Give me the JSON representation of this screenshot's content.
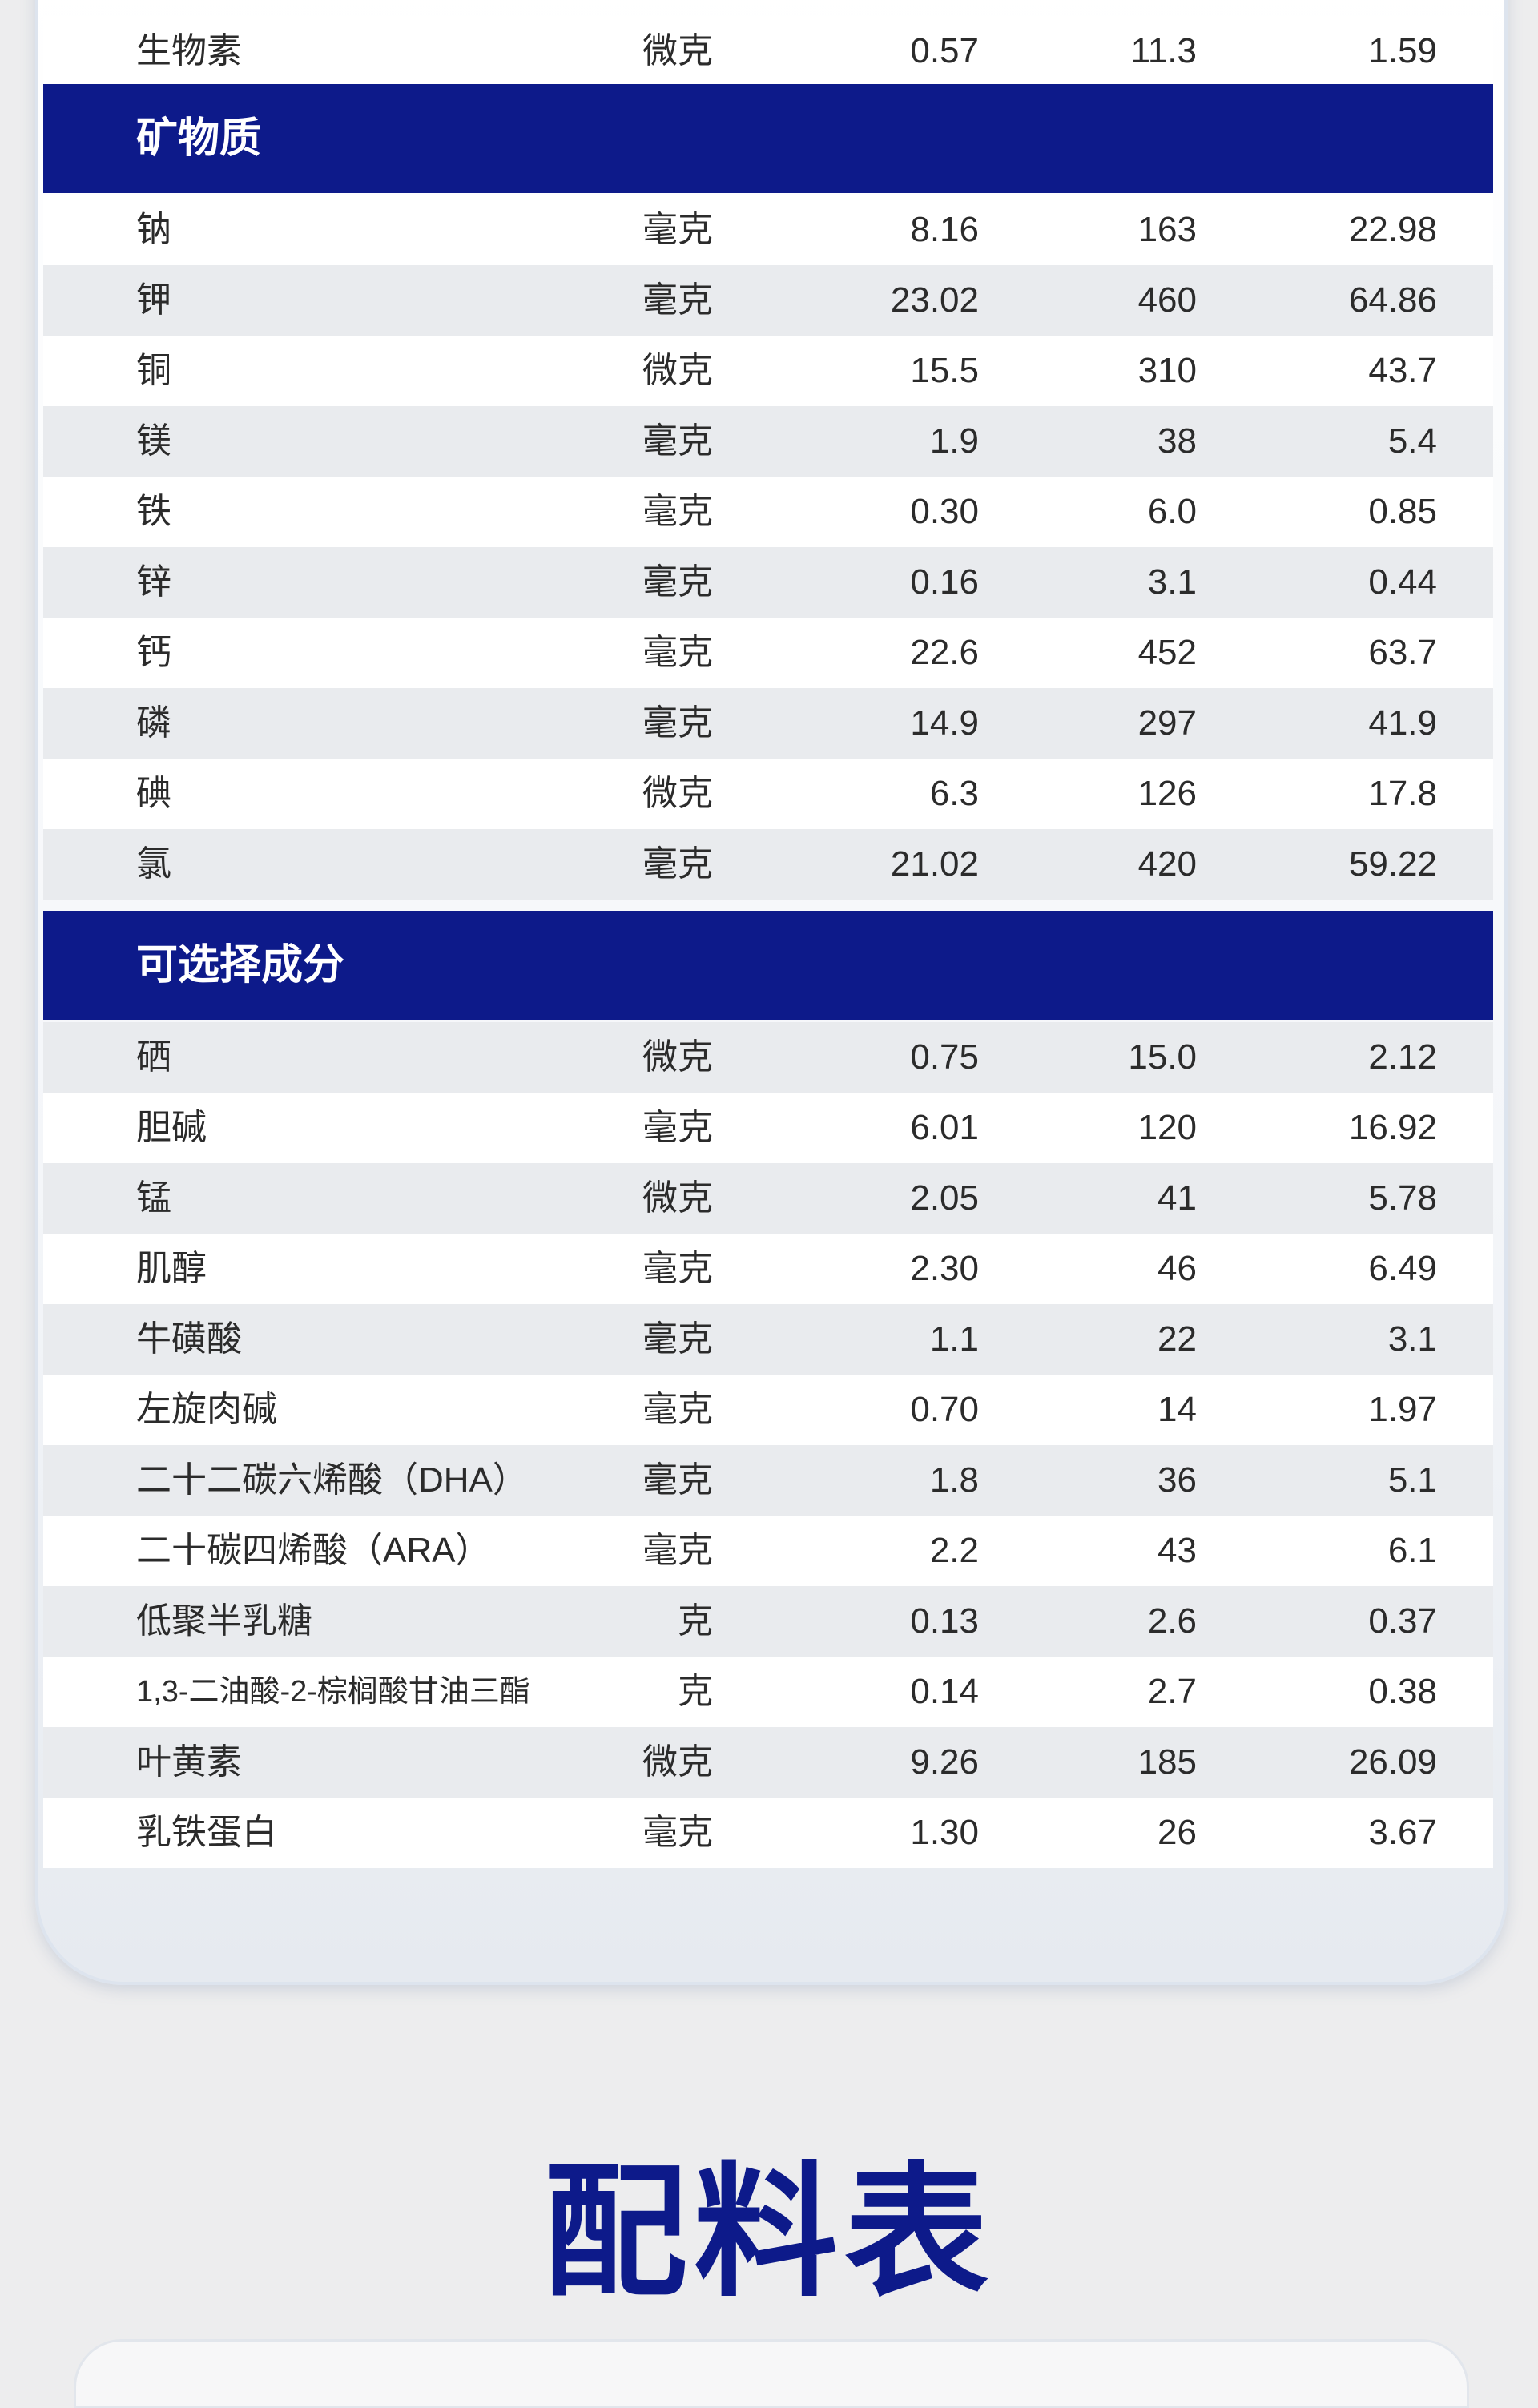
{
  "top_row": {
    "name": "生物素",
    "unit": "微克",
    "v1": "0.57",
    "v2": "11.3",
    "v3": "1.59"
  },
  "sections": {
    "minerals": {
      "title": "矿物质",
      "rows": [
        {
          "name": "钠",
          "unit": "毫克",
          "v1": "8.16",
          "v2": "163",
          "v3": "22.98"
        },
        {
          "name": "钾",
          "unit": "毫克",
          "v1": "23.02",
          "v2": "460",
          "v3": "64.86"
        },
        {
          "name": "铜",
          "unit": "微克",
          "v1": "15.5",
          "v2": "310",
          "v3": "43.7"
        },
        {
          "name": "镁",
          "unit": "毫克",
          "v1": "1.9",
          "v2": "38",
          "v3": "5.4"
        },
        {
          "name": "铁",
          "unit": "毫克",
          "v1": "0.30",
          "v2": "6.0",
          "v3": "0.85"
        },
        {
          "name": "锌",
          "unit": "毫克",
          "v1": "0.16",
          "v2": "3.1",
          "v3": "0.44"
        },
        {
          "name": "钙",
          "unit": "毫克",
          "v1": "22.6",
          "v2": "452",
          "v3": "63.7"
        },
        {
          "name": "磷",
          "unit": "毫克",
          "v1": "14.9",
          "v2": "297",
          "v3": "41.9"
        },
        {
          "name": "碘",
          "unit": "微克",
          "v1": "6.3",
          "v2": "126",
          "v3": "17.8"
        },
        {
          "name": "氯",
          "unit": "毫克",
          "v1": "21.02",
          "v2": "420",
          "v3": "59.22"
        }
      ]
    },
    "optional": {
      "title": "可选择成分",
      "rows": [
        {
          "name": "硒",
          "unit": "微克",
          "v1": "0.75",
          "v2": "15.0",
          "v3": "2.12"
        },
        {
          "name": "胆碱",
          "unit": "毫克",
          "v1": "6.01",
          "v2": "120",
          "v3": "16.92"
        },
        {
          "name": "锰",
          "unit": "微克",
          "v1": "2.05",
          "v2": "41",
          "v3": "5.78"
        },
        {
          "name": "肌醇",
          "unit": "毫克",
          "v1": "2.30",
          "v2": "46",
          "v3": "6.49"
        },
        {
          "name": "牛磺酸",
          "unit": "毫克",
          "v1": "1.1",
          "v2": "22",
          "v3": "3.1"
        },
        {
          "name": "左旋肉碱",
          "unit": "毫克",
          "v1": "0.70",
          "v2": "14",
          "v3": "1.97"
        },
        {
          "name": "二十二碳六烯酸（DHA）",
          "unit": "毫克",
          "v1": "1.8",
          "v2": "36",
          "v3": "5.1"
        },
        {
          "name": "二十碳四烯酸（ARA）",
          "unit": "毫克",
          "v1": "2.2",
          "v2": "43",
          "v3": "6.1"
        },
        {
          "name": "低聚半乳糖",
          "unit": "克",
          "v1": "0.13",
          "v2": "2.6",
          "v3": "0.37"
        },
        {
          "name": "1,3-二油酸-2-棕榈酸甘油三酯",
          "unit": "克",
          "v1": "0.14",
          "v2": "2.7",
          "v3": "0.38"
        },
        {
          "name": "叶黄素",
          "unit": "微克",
          "v1": "9.26",
          "v2": "185",
          "v3": "26.09"
        },
        {
          "name": "乳铁蛋白",
          "unit": "毫克",
          "v1": "1.30",
          "v2": "26",
          "v3": "3.67"
        }
      ]
    }
  },
  "footer_title": "配料表",
  "colors": {
    "section_bg": "#0d1a8a",
    "row_gray": "#e9ebee",
    "title": "#0d1a8a"
  }
}
